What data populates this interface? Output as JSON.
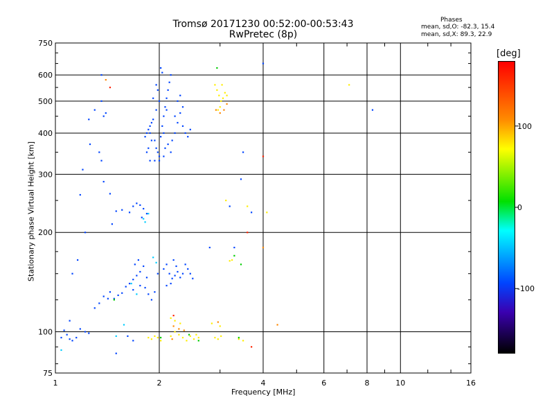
{
  "title": {
    "line1": "Tromsø 20171230 00:52:00-00:53:43",
    "line2": "RwPretec (8p)"
  },
  "phases_box": {
    "heading": "Phases",
    "o_mode": "mean, sd,O: -82.3, 15.4",
    "x_mode": "mean, sd,X: 89.3, 22.9"
  },
  "colorbar": {
    "unit": "[deg]",
    "ticks": [
      "100",
      "0",
      "-100"
    ],
    "tick_values": [
      100,
      0,
      -100
    ],
    "range": [
      -180,
      180
    ],
    "colors": [
      "#000000",
      "#3a00b0",
      "#0044ff",
      "#00ffff",
      "#00e000",
      "#ffff00",
      "#ff8c00",
      "#ff0000"
    ]
  },
  "chart_data": {
    "type": "scatter",
    "xlabel": "Frequency [MHz]",
    "ylabel": "Stationary phase Virtual Height [km]",
    "xscale": "log",
    "yscale": "log",
    "xlim": [
      1,
      16
    ],
    "ylim": [
      75,
      750
    ],
    "xticks": [
      1,
      2,
      4,
      6,
      8,
      10,
      16
    ],
    "xtick_labels": [
      "1",
      "2",
      "4",
      "6",
      "8",
      "10",
      "16"
    ],
    "yticks": [
      75,
      100,
      200,
      300,
      400,
      500,
      600,
      750
    ],
    "ytick_labels": [
      "75",
      "100",
      "200",
      "300",
      "400",
      "500",
      "600",
      "750"
    ],
    "grid": true,
    "series": [
      {
        "color": "#0044ff",
        "points": [
          [
            1.04,
            96
          ],
          [
            1.06,
            101
          ],
          [
            1.08,
            98
          ],
          [
            1.1,
            95
          ],
          [
            1.12,
            94
          ],
          [
            1.15,
            96
          ],
          [
            1.18,
            102
          ],
          [
            1.22,
            100
          ],
          [
            1.25,
            99
          ],
          [
            1.1,
            108
          ],
          [
            1.3,
            118
          ],
          [
            1.34,
            122
          ],
          [
            1.38,
            128
          ],
          [
            1.42,
            126
          ],
          [
            1.44,
            132
          ],
          [
            1.48,
            126
          ],
          [
            1.52,
            129
          ],
          [
            1.56,
            131
          ],
          [
            1.6,
            137
          ],
          [
            1.64,
            140
          ],
          [
            1.68,
            144
          ],
          [
            1.72,
            148
          ],
          [
            1.76,
            152
          ],
          [
            1.7,
            160
          ],
          [
            1.74,
            165
          ],
          [
            1.8,
            158
          ],
          [
            1.84,
            146
          ],
          [
            1.76,
            138
          ],
          [
            1.82,
            136
          ],
          [
            1.68,
            134
          ],
          [
            1.64,
            230
          ],
          [
            1.68,
            240
          ],
          [
            1.72,
            245
          ],
          [
            1.76,
            242
          ],
          [
            1.8,
            236
          ],
          [
            1.84,
            228
          ],
          [
            1.78,
            222
          ],
          [
            1.56,
            234
          ],
          [
            1.5,
            232
          ],
          [
            1.46,
            212
          ],
          [
            1.44,
            262
          ],
          [
            1.38,
            285
          ],
          [
            1.36,
            330
          ],
          [
            1.34,
            350
          ],
          [
            1.36,
            500
          ],
          [
            1.38,
            450
          ],
          [
            1.36,
            600
          ],
          [
            1.4,
            460
          ],
          [
            1.3,
            470
          ],
          [
            1.25,
            440
          ],
          [
            1.2,
            310
          ],
          [
            1.18,
            260
          ],
          [
            1.22,
            200
          ],
          [
            1.16,
            165
          ],
          [
            1.12,
            150
          ],
          [
            1.26,
            370
          ],
          [
            1.82,
            390
          ],
          [
            1.84,
            400
          ],
          [
            1.86,
            410
          ],
          [
            1.88,
            420
          ],
          [
            1.9,
            430
          ],
          [
            1.92,
            440
          ],
          [
            1.94,
            380
          ],
          [
            1.96,
            360
          ],
          [
            1.98,
            350
          ],
          [
            2.0,
            340
          ],
          [
            2.02,
            390
          ],
          [
            2.04,
            420
          ],
          [
            2.06,
            450
          ],
          [
            2.08,
            480
          ],
          [
            2.1,
            510
          ],
          [
            2.12,
            540
          ],
          [
            2.14,
            570
          ],
          [
            2.16,
            600
          ],
          [
            2.1,
            470
          ],
          [
            2.06,
            400
          ],
          [
            2.0,
            500
          ],
          [
            1.98,
            540
          ],
          [
            1.96,
            560
          ],
          [
            2.04,
            610
          ],
          [
            2.02,
            630
          ],
          [
            1.96,
            470
          ],
          [
            1.92,
            510
          ],
          [
            1.9,
            380
          ],
          [
            1.86,
            360
          ],
          [
            1.88,
            400
          ],
          [
            2.18,
            380
          ],
          [
            2.22,
            400
          ],
          [
            2.26,
            430
          ],
          [
            2.3,
            460
          ],
          [
            2.34,
            420
          ],
          [
            2.38,
            400
          ],
          [
            2.42,
            390
          ],
          [
            2.46,
            410
          ],
          [
            2.34,
            480
          ],
          [
            2.3,
            520
          ],
          [
            2.26,
            500
          ],
          [
            2.22,
            450
          ],
          [
            2.16,
            350
          ],
          [
            2.12,
            370
          ],
          [
            2.08,
            360
          ],
          [
            1.94,
            330
          ],
          [
            2.0,
            330
          ],
          [
            2.06,
            340
          ],
          [
            1.88,
            330
          ],
          [
            1.84,
            350
          ],
          [
            2.06,
            155
          ],
          [
            2.1,
            160
          ],
          [
            2.14,
            150
          ],
          [
            2.18,
            145
          ],
          [
            2.22,
            148
          ],
          [
            2.26,
            152
          ],
          [
            2.3,
            146
          ],
          [
            2.34,
            150
          ],
          [
            2.38,
            160
          ],
          [
            2.42,
            155
          ],
          [
            2.46,
            150
          ],
          [
            2.5,
            145
          ],
          [
            2.2,
            165
          ],
          [
            2.24,
            158
          ],
          [
            2.16,
            140
          ],
          [
            2.1,
            138
          ],
          [
            1.98,
            150
          ],
          [
            1.94,
            132
          ],
          [
            1.9,
            125
          ],
          [
            1.86,
            130
          ],
          [
            2.8,
            180
          ],
          [
            1.5,
            86
          ],
          [
            1.62,
            97
          ],
          [
            1.68,
            94
          ],
          [
            4.0,
            650
          ],
          [
            3.5,
            350
          ],
          [
            3.7,
            230
          ],
          [
            3.45,
            290
          ],
          [
            3.3,
            180
          ],
          [
            8.3,
            470
          ],
          [
            3.2,
            240
          ]
        ]
      },
      {
        "color": "#00ccff",
        "points": [
          [
            1.8,
            220
          ],
          [
            1.82,
            215
          ],
          [
            1.86,
            228
          ],
          [
            1.92,
            168
          ],
          [
            1.96,
            162
          ],
          [
            1.72,
            130
          ],
          [
            1.66,
            140
          ],
          [
            1.5,
            97
          ],
          [
            1.58,
            105
          ],
          [
            1.04,
            88
          ]
        ]
      },
      {
        "color": "#ffee00",
        "points": [
          [
            2.9,
            560
          ],
          [
            2.94,
            540
          ],
          [
            2.98,
            520
          ],
          [
            3.02,
            500
          ],
          [
            3.06,
            510
          ],
          [
            3.1,
            530
          ],
          [
            3.14,
            520
          ],
          [
            3.0,
            480
          ],
          [
            2.96,
            470
          ],
          [
            3.04,
            560
          ],
          [
            1.86,
            96
          ],
          [
            1.9,
            95
          ],
          [
            1.94,
            97
          ],
          [
            1.98,
            96
          ],
          [
            2.02,
            94
          ],
          [
            2.16,
            97
          ],
          [
            2.22,
            100
          ],
          [
            2.28,
            98
          ],
          [
            2.34,
            96
          ],
          [
            2.4,
            94
          ],
          [
            2.46,
            97
          ],
          [
            2.52,
            95
          ],
          [
            2.56,
            98
          ],
          [
            2.6,
            96
          ],
          [
            2.9,
            96
          ],
          [
            2.96,
            95
          ],
          [
            3.02,
            97
          ],
          [
            3.4,
            95
          ],
          [
            3.5,
            94
          ],
          [
            2.16,
            110
          ],
          [
            2.22,
            108
          ],
          [
            2.3,
            106
          ],
          [
            2.84,
            106
          ],
          [
            3.0,
            104
          ],
          [
            7.1,
            560
          ],
          [
            3.12,
            250
          ],
          [
            3.6,
            240
          ],
          [
            4.1,
            230
          ],
          [
            3.25,
            165
          ],
          [
            3.2,
            164
          ]
        ]
      },
      {
        "color": "#ff8800",
        "points": [
          [
            2.92,
            470
          ],
          [
            3.0,
            460
          ],
          [
            3.08,
            470
          ],
          [
            3.14,
            490
          ],
          [
            2.2,
            104
          ],
          [
            2.28,
            102
          ],
          [
            2.36,
            101
          ],
          [
            2.18,
            95
          ],
          [
            2.96,
            107
          ],
          [
            4.0,
            180
          ],
          [
            4.4,
            105
          ],
          [
            1.4,
            580
          ]
        ]
      },
      {
        "color": "#00cc00",
        "points": [
          [
            2.94,
            630
          ],
          [
            2.02,
            96
          ],
          [
            2.44,
            98
          ],
          [
            2.6,
            94
          ],
          [
            3.4,
            96
          ],
          [
            3.45,
            160
          ],
          [
            3.3,
            170
          ],
          [
            1.48,
            125
          ]
        ]
      },
      {
        "color": "#ff2200",
        "points": [
          [
            4.0,
            340
          ],
          [
            3.7,
            90
          ],
          [
            1.44,
            550
          ],
          [
            2.2,
            112
          ],
          [
            3.6,
            200
          ]
        ]
      }
    ]
  }
}
